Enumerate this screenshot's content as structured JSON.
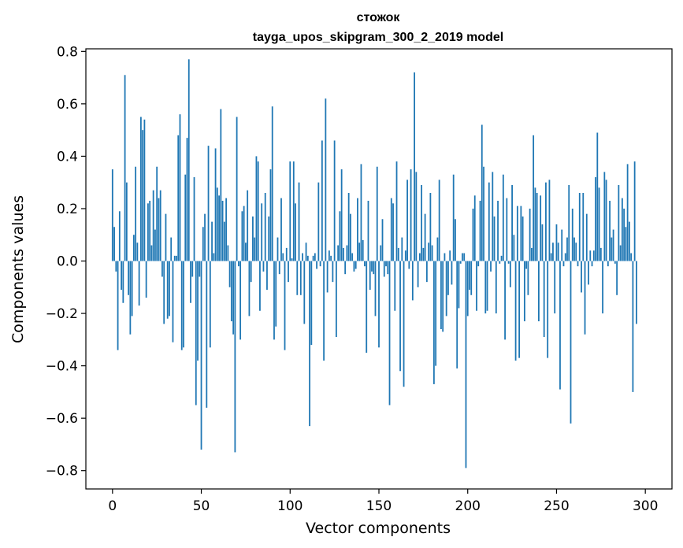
{
  "chart_data": {
    "type": "bar",
    "title_line1": "стожок",
    "title_line2": "tayga_upos_skipgram_300_2_2019 model",
    "xlabel": "Vector components",
    "ylabel": "Components values",
    "xlim": [
      -15,
      315
    ],
    "ylim": [
      -0.87,
      0.81
    ],
    "x_ticks": [
      0,
      50,
      100,
      150,
      200,
      250,
      300
    ],
    "x_tick_labels": [
      "0",
      "50",
      "100",
      "150",
      "200",
      "250",
      "300"
    ],
    "y_ticks": [
      0.8,
      0.6,
      0.4,
      0.2,
      0.0,
      -0.2,
      -0.4,
      -0.6,
      -0.8
    ],
    "y_tick_labels": [
      "0.8",
      "0.6",
      "0.4",
      "0.2",
      "0.0",
      "−0.2",
      "−0.4",
      "−0.6",
      "−0.8"
    ],
    "bar_color": "#1f77b4",
    "grid": false,
    "values": [
      0.35,
      0.13,
      -0.04,
      -0.34,
      0.19,
      -0.11,
      -0.16,
      0.71,
      0.3,
      -0.13,
      -0.28,
      -0.21,
      0.1,
      0.36,
      0.07,
      -0.17,
      0.55,
      0.5,
      0.54,
      -0.14,
      0.22,
      0.23,
      0.06,
      0.27,
      0.12,
      0.36,
      0.24,
      0.27,
      -0.06,
      -0.24,
      0.18,
      -0.22,
      -0.21,
      0.09,
      -0.31,
      0.02,
      0.02,
      0.48,
      0.56,
      -0.34,
      -0.33,
      0.33,
      0.47,
      0.77,
      -0.16,
      -0.06,
      0.32,
      -0.55,
      -0.38,
      -0.06,
      -0.72,
      0.13,
      0.18,
      -0.56,
      0.44,
      -0.33,
      0.15,
      0.03,
      0.43,
      0.28,
      0.25,
      0.58,
      0.23,
      0.15,
      0.24,
      0.06,
      -0.1,
      -0.23,
      -0.28,
      -0.73,
      0.55,
      -0.02,
      -0.3,
      0.19,
      0.21,
      0.07,
      0.27,
      -0.21,
      -0.08,
      0.17,
      0.09,
      0.4,
      0.38,
      -0.19,
      0.22,
      -0.04,
      0.26,
      -0.11,
      0.17,
      0.35,
      0.59,
      -0.3,
      -0.25,
      0.09,
      -0.05,
      0.24,
      0.03,
      -0.34,
      0.05,
      -0.08,
      0.38,
      0.01,
      0.38,
      0.22,
      -0.13,
      0.3,
      -0.13,
      0.03,
      -0.24,
      0.07,
      0.02,
      -0.63,
      -0.32,
      0.02,
      0.03,
      -0.03,
      0.3,
      -0.02,
      0.46,
      -0.38,
      0.62,
      -0.12,
      0.04,
      0.02,
      -0.08,
      0.46,
      -0.29,
      0.06,
      0.19,
      0.35,
      0.05,
      -0.05,
      0.06,
      0.26,
      0.18,
      0.03,
      -0.04,
      -0.03,
      0.24,
      0.07,
      0.37,
      0.08,
      -0.02,
      -0.35,
      0.23,
      -0.11,
      -0.04,
      -0.05,
      -0.21,
      0.36,
      -0.33,
      0.06,
      0.16,
      -0.06,
      -0.02,
      -0.05,
      -0.55,
      0.24,
      0.22,
      -0.19,
      0.38,
      0.05,
      -0.42,
      0.09,
      -0.48,
      0.04,
      0.31,
      -0.03,
      0.35,
      -0.15,
      0.72,
      0.34,
      -0.1,
      0.03,
      0.29,
      0.05,
      0.18,
      -0.08,
      0.07,
      0.26,
      0.06,
      -0.47,
      -0.4,
      0.09,
      0.31,
      -0.26,
      -0.27,
      0.03,
      -0.21,
      -0.13,
      0.04,
      -0.09,
      0.33,
      0.16,
      -0.41,
      -0.18,
      -0.01,
      0.03,
      0.03,
      -0.79,
      -0.21,
      -0.11,
      -0.13,
      0.2,
      0.25,
      -0.19,
      -0.02,
      0.23,
      0.52,
      0.36,
      -0.2,
      -0.19,
      0.3,
      -0.04,
      0.34,
      0.17,
      -0.2,
      0.23,
      -0.01,
      0.02,
      0.33,
      -0.3,
      0.24,
      -0.01,
      -0.1,
      0.29,
      0.1,
      -0.38,
      0.21,
      -0.37,
      0.21,
      0.17,
      -0.23,
      -0.03,
      -0.13,
      0.2,
      0.05,
      0.48,
      0.28,
      0.26,
      -0.23,
      0.25,
      0.14,
      -0.29,
      0.3,
      -0.37,
      0.31,
      0.03,
      0.07,
      -0.2,
      0.14,
      0.07,
      -0.49,
      0.12,
      -0.02,
      0.03,
      0.09,
      0.29,
      -0.62,
      0.2,
      0.09,
      0.07,
      -0.02,
      0.26,
      -0.12,
      0.26,
      -0.28,
      0.18,
      -0.09,
      0.04,
      -0.02,
      0.04,
      0.32,
      0.49,
      0.28,
      0.05,
      -0.2,
      0.34,
      0.31,
      -0.02,
      0.23,
      0.09,
      0.12,
      -0.01,
      -0.13,
      0.29,
      0.06,
      0.24,
      0.2,
      0.13,
      0.37,
      0.15,
      0.03,
      -0.5,
      0.38,
      -0.24
    ]
  }
}
